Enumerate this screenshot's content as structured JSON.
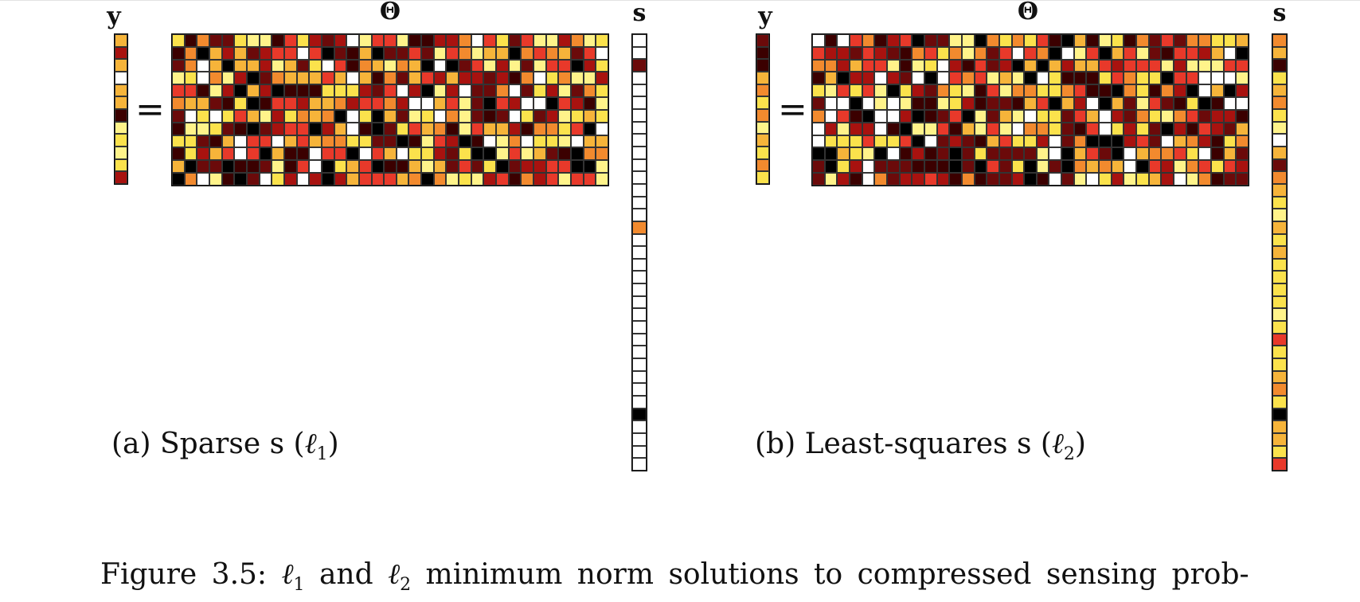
{
  "panels": [
    {
      "label_y": "y",
      "label_theta": "Θ",
      "label_s": "s",
      "equals": "=",
      "caption_prefix": "(a) Sparse s (",
      "caption_ell": "ℓ",
      "caption_sub": "1",
      "caption_suffix": ")",
      "s_profile": "sparse"
    },
    {
      "label_y": "y",
      "label_theta": "Θ",
      "label_s": "s",
      "equals": "=",
      "caption_prefix": "(b) Least-squares s (",
      "caption_ell": "ℓ",
      "caption_sub": "2",
      "caption_suffix": ")",
      "s_profile": "dense"
    }
  ],
  "figure_caption": {
    "prefix": "Figure 3.5: ",
    "ell": "ℓ",
    "sub1": "1",
    "and": " and ",
    "sub2": "2",
    "rest": " minimum norm solutions to compressed sensing prob-"
  },
  "colors": {
    "hot_scale": [
      "#000000",
      "#3b0000",
      "#6b0a0a",
      "#a8120f",
      "#e8392a",
      "#f28a2e",
      "#f6b43a",
      "#fbe24c",
      "#fff38a",
      "#ffffff"
    ]
  },
  "matrix_dims": {
    "y_rows": 12,
    "theta_rows": 12,
    "theta_cols": 35,
    "s_rows": 35
  }
}
